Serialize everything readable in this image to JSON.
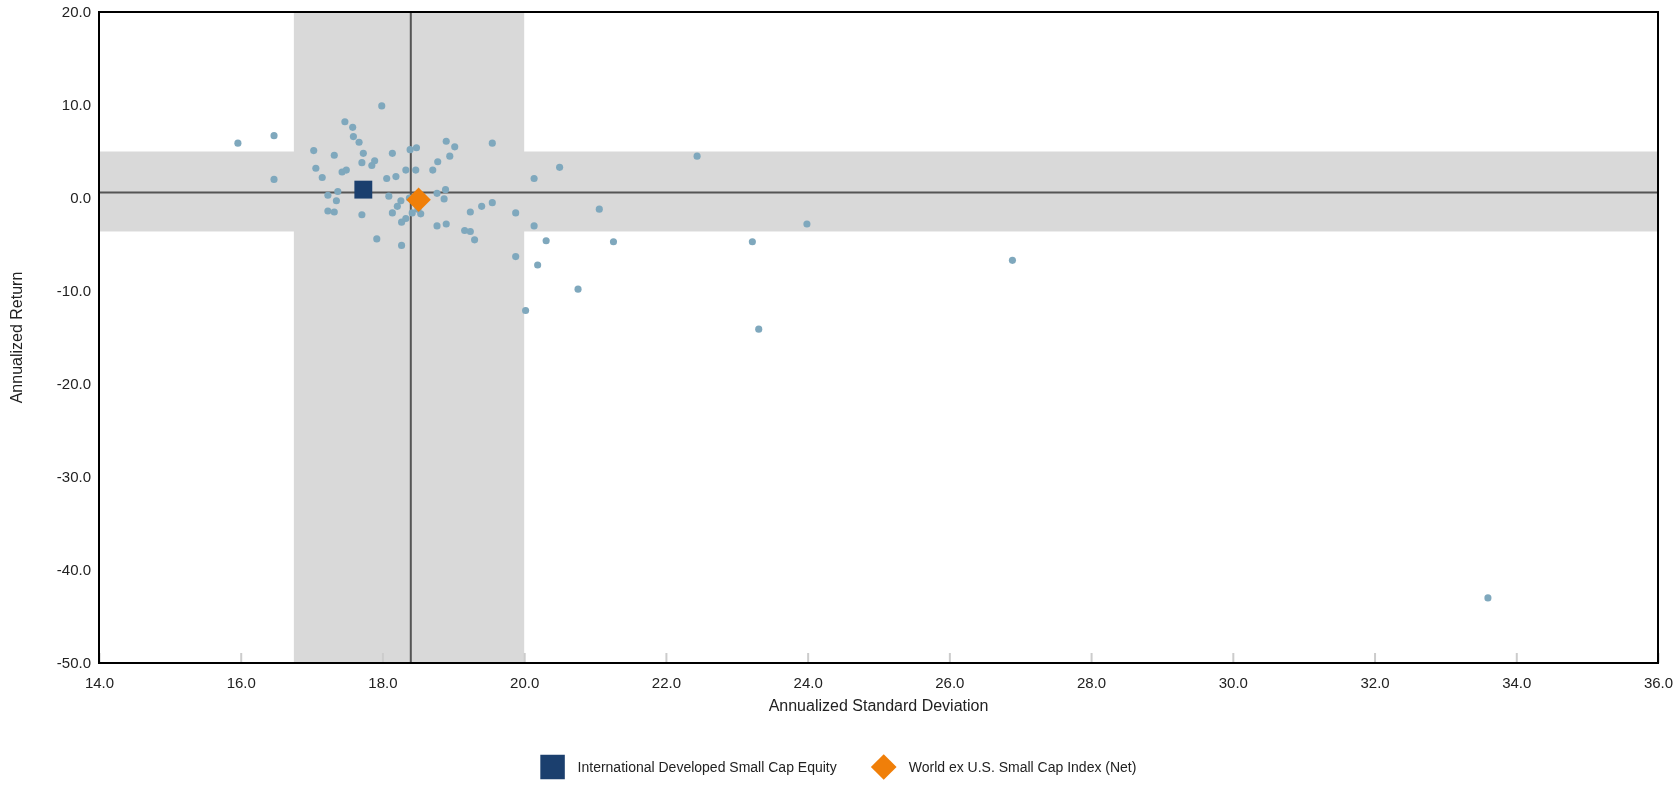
{
  "chart_data": {
    "type": "scatter",
    "xlabel": "Annualized Standard Deviation",
    "ylabel": "Annualized Return",
    "xlim": [
      14,
      36
    ],
    "ylim": [
      -50,
      20
    ],
    "xticks": [
      {
        "value": 14,
        "label": "14.0"
      },
      {
        "value": 16,
        "label": "16.0"
      },
      {
        "value": 18,
        "label": "18.0"
      },
      {
        "value": 20,
        "label": "20.0"
      },
      {
        "value": 22,
        "label": "22.0"
      },
      {
        "value": 24,
        "label": "24.0"
      },
      {
        "value": 26,
        "label": "26.0"
      },
      {
        "value": 28,
        "label": "28.0"
      },
      {
        "value": 30,
        "label": "30.0"
      },
      {
        "value": 32,
        "label": "32.0"
      },
      {
        "value": 34,
        "label": "34.0"
      },
      {
        "value": 36,
        "label": "36.0"
      }
    ],
    "yticks": [
      {
        "value": -50,
        "label": "-50.0"
      },
      {
        "value": -40,
        "label": "-40.0"
      },
      {
        "value": -30,
        "label": "-30.0"
      },
      {
        "value": -20,
        "label": "-20.0"
      },
      {
        "value": -10,
        "label": "-10.0"
      },
      {
        "value": 0,
        "label": "0.0"
      },
      {
        "value": 10,
        "label": "10.0"
      },
      {
        "value": 20,
        "label": "20.0"
      }
    ],
    "grid": false,
    "legend": "bottom",
    "bands": [
      {
        "axis": "x",
        "from": 16.75,
        "to": 20.0,
        "color": "#d9d9d9"
      },
      {
        "axis": "y",
        "from": -3.6,
        "to": 5.0,
        "color": "#d9d9d9"
      }
    ],
    "ref_lines": [
      {
        "axis": "x",
        "value": 18.4,
        "color": "#555555"
      },
      {
        "axis": "y",
        "value": 0.6,
        "color": "#555555"
      }
    ],
    "series": [
      {
        "color": "#7fa8bd",
        "marker": "circle",
        "x": [
          15.96,
          16.47,
          16.47,
          17.03,
          17.06,
          17.15,
          17.23,
          17.23,
          17.32,
          17.32,
          17.37,
          17.35,
          17.43,
          17.49,
          17.47,
          17.58,
          17.59,
          17.67,
          17.73,
          17.71,
          17.71,
          17.85,
          17.89,
          17.99,
          17.92,
          18.06,
          18.09,
          18.14,
          18.14,
          18.19,
          18.21,
          18.26,
          18.27,
          18.27,
          18.33,
          18.33,
          18.38,
          18.39,
          18.42,
          18.47,
          18.48,
          18.5,
          18.54,
          18.71,
          18.77,
          18.77,
          18.78,
          18.87,
          18.89,
          18.9,
          18.9,
          18.95,
          19.02,
          19.16,
          19.24,
          19.3,
          19.24,
          19.4,
          19.55,
          19.55,
          19.88,
          19.88,
          20.02,
          20.14,
          20.14,
          20.19,
          20.31,
          20.5,
          20.76,
          21.06,
          21.26,
          22.44,
          23.22,
          23.31,
          23.99,
          26.89,
          33.6
        ],
        "values": [
          5.9,
          6.7,
          2.0,
          5.1,
          3.2,
          2.2,
          0.3,
          -1.4,
          4.6,
          -1.5,
          0.7,
          -0.3,
          2.8,
          3.0,
          8.2,
          7.6,
          6.6,
          6.0,
          4.8,
          3.8,
          -1.8,
          3.5,
          4.0,
          9.9,
          -4.4,
          2.1,
          0.2,
          4.8,
          -1.6,
          2.3,
          -0.9,
          -0.3,
          -5.1,
          -2.6,
          3.0,
          -2.2,
          0.0,
          5.2,
          -1.6,
          3.0,
          5.4,
          -1.2,
          -1.7,
          3.0,
          0.5,
          -3.0,
          3.9,
          -0.1,
          0.9,
          6.1,
          -2.8,
          4.5,
          5.5,
          -3.5,
          -3.6,
          -4.5,
          -1.5,
          -0.9,
          -0.5,
          5.9,
          -1.6,
          -6.3,
          -12.1,
          2.1,
          -3.0,
          -7.2,
          -4.6,
          3.3,
          -9.8,
          -1.2,
          -4.7,
          4.5,
          -4.7,
          -14.1,
          -2.8,
          -6.7,
          -43.0
        ]
      },
      {
        "name": "International Developed Small Cap Equity",
        "color": "#1b3f6e",
        "marker": "square",
        "x": [
          17.73
        ],
        "values": [
          0.9
        ]
      },
      {
        "name": "World ex U.S. Small Cap Index (Net)",
        "color": "#f07f09",
        "marker": "diamond",
        "x": [
          18.51
        ],
        "values": [
          -0.2
        ]
      }
    ]
  }
}
